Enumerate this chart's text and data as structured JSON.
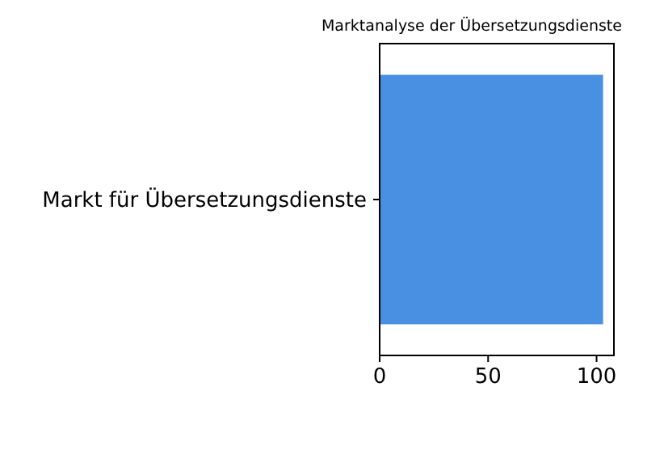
{
  "chart_data": {
    "type": "bar",
    "title": "Marktanalyse der Übersetzungsdienste",
    "orientation": "horizontal",
    "categories": [
      "Markt für Übersetzungsdienste"
    ],
    "values": [
      103
    ],
    "color": "#4a90e2",
    "xlim": [
      0,
      108
    ],
    "xticks": [
      0,
      50,
      100
    ],
    "grid": false
  }
}
